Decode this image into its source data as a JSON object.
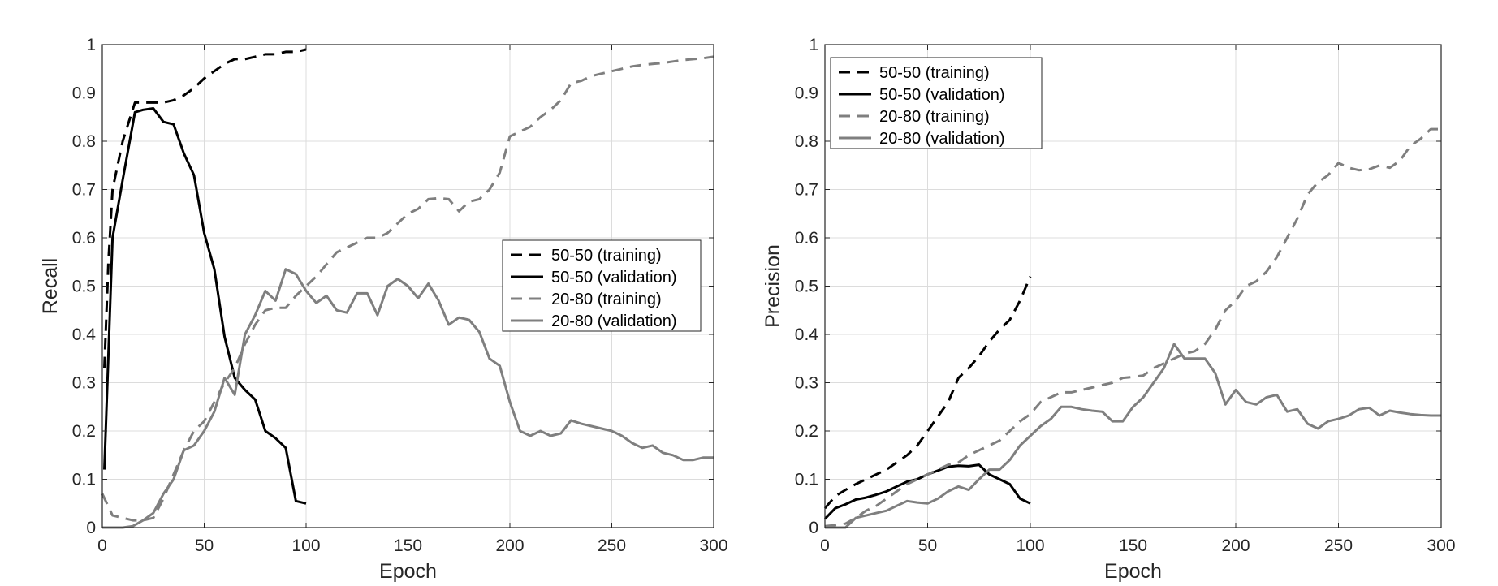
{
  "chart_data": [
    {
      "type": "line",
      "xlabel": "Epoch",
      "ylabel": "Recall",
      "xlim": [
        0,
        300
      ],
      "ylim": [
        0,
        1
      ],
      "xticks": [
        0,
        50,
        100,
        150,
        200,
        250,
        300
      ],
      "yticks": [
        0,
        0.1,
        0.2,
        0.3,
        0.4,
        0.5,
        0.6,
        0.7,
        0.8,
        0.9,
        1
      ],
      "grid": true,
      "legend_position": "center-right",
      "series": [
        {
          "name": "50-50 (training)",
          "color": "#000000",
          "dash": true,
          "x": [
            1,
            3,
            5,
            10,
            16,
            20,
            25,
            30,
            35,
            40,
            45,
            50,
            55,
            60,
            65,
            70,
            75,
            80,
            85,
            90,
            95,
            100
          ],
          "y": [
            0.33,
            0.55,
            0.7,
            0.8,
            0.88,
            0.88,
            0.88,
            0.88,
            0.885,
            0.895,
            0.91,
            0.93,
            0.945,
            0.96,
            0.97,
            0.97,
            0.975,
            0.98,
            0.98,
            0.985,
            0.985,
            0.99
          ]
        },
        {
          "name": "50-50 (validation)",
          "color": "#000000",
          "dash": false,
          "x": [
            1,
            5,
            10,
            16,
            20,
            25,
            30,
            35,
            40,
            45,
            50,
            55,
            60,
            65,
            70,
            75,
            80,
            85,
            90,
            95,
            100
          ],
          "y": [
            0.12,
            0.6,
            0.72,
            0.86,
            0.865,
            0.868,
            0.84,
            0.835,
            0.775,
            0.73,
            0.61,
            0.535,
            0.395,
            0.31,
            0.285,
            0.265,
            0.2,
            0.185,
            0.165,
            0.055,
            0.05
          ]
        },
        {
          "name": "20-80 (training)",
          "color": "#7f7f7f",
          "dash": true,
          "x": [
            0,
            5,
            10,
            15,
            20,
            25,
            30,
            35,
            40,
            45,
            50,
            55,
            60,
            65,
            70,
            75,
            80,
            85,
            90,
            95,
            100,
            105,
            110,
            115,
            120,
            125,
            130,
            135,
            140,
            145,
            150,
            155,
            160,
            165,
            170,
            175,
            180,
            185,
            190,
            195,
            200,
            205,
            210,
            215,
            220,
            225,
            230,
            235,
            240,
            245,
            250,
            255,
            260,
            265,
            270,
            275,
            280,
            285,
            290,
            295,
            300
          ],
          "y": [
            0.07,
            0.025,
            0.02,
            0.015,
            0.015,
            0.02,
            0.06,
            0.11,
            0.16,
            0.2,
            0.22,
            0.26,
            0.3,
            0.33,
            0.38,
            0.42,
            0.45,
            0.455,
            0.455,
            0.48,
            0.5,
            0.52,
            0.545,
            0.57,
            0.58,
            0.59,
            0.6,
            0.6,
            0.61,
            0.63,
            0.65,
            0.66,
            0.68,
            0.682,
            0.68,
            0.655,
            0.675,
            0.68,
            0.7,
            0.735,
            0.81,
            0.82,
            0.83,
            0.85,
            0.865,
            0.885,
            0.92,
            0.925,
            0.935,
            0.94,
            0.945,
            0.95,
            0.955,
            0.958,
            0.96,
            0.962,
            0.965,
            0.968,
            0.97,
            0.972,
            0.975
          ]
        },
        {
          "name": "20-80 (validation)",
          "color": "#7f7f7f",
          "dash": false,
          "x": [
            0,
            5,
            10,
            15,
            20,
            25,
            30,
            35,
            40,
            45,
            50,
            55,
            60,
            65,
            70,
            75,
            80,
            85,
            90,
            95,
            100,
            105,
            110,
            115,
            120,
            125,
            130,
            135,
            140,
            145,
            150,
            155,
            160,
            165,
            170,
            175,
            180,
            185,
            190,
            195,
            200,
            205,
            210,
            215,
            220,
            225,
            230,
            235,
            240,
            245,
            250,
            255,
            260,
            265,
            270,
            275,
            280,
            285,
            290,
            295,
            300
          ],
          "y": [
            0,
            0,
            0,
            0.003,
            0.015,
            0.03,
            0.07,
            0.1,
            0.16,
            0.17,
            0.2,
            0.24,
            0.31,
            0.275,
            0.4,
            0.44,
            0.49,
            0.47,
            0.535,
            0.525,
            0.49,
            0.465,
            0.48,
            0.45,
            0.445,
            0.485,
            0.485,
            0.44,
            0.5,
            0.515,
            0.5,
            0.475,
            0.505,
            0.47,
            0.42,
            0.435,
            0.43,
            0.405,
            0.35,
            0.335,
            0.26,
            0.2,
            0.19,
            0.2,
            0.19,
            0.195,
            0.222,
            0.215,
            0.21,
            0.205,
            0.2,
            0.19,
            0.175,
            0.165,
            0.17,
            0.155,
            0.15,
            0.14,
            0.14,
            0.145,
            0.145
          ]
        }
      ]
    },
    {
      "type": "line",
      "xlabel": "Epoch",
      "ylabel": "Precision",
      "xlim": [
        0,
        300
      ],
      "ylim": [
        0,
        1
      ],
      "xticks": [
        0,
        50,
        100,
        150,
        200,
        250,
        300
      ],
      "yticks": [
        0,
        0.1,
        0.2,
        0.3,
        0.4,
        0.5,
        0.6,
        0.7,
        0.8,
        0.9,
        1
      ],
      "grid": true,
      "legend_position": "top-left",
      "series": [
        {
          "name": "50-50 (training)",
          "color": "#000000",
          "dash": true,
          "x": [
            0,
            5,
            10,
            15,
            20,
            25,
            30,
            35,
            40,
            45,
            50,
            55,
            60,
            65,
            70,
            75,
            80,
            85,
            90,
            95,
            100
          ],
          "y": [
            0.04,
            0.065,
            0.078,
            0.09,
            0.1,
            0.11,
            0.12,
            0.135,
            0.15,
            0.17,
            0.2,
            0.23,
            0.26,
            0.31,
            0.33,
            0.355,
            0.385,
            0.41,
            0.43,
            0.47,
            0.52
          ]
        },
        {
          "name": "50-50 (validation)",
          "color": "#000000",
          "dash": false,
          "x": [
            0,
            5,
            10,
            15,
            20,
            25,
            30,
            35,
            40,
            45,
            50,
            55,
            60,
            65,
            70,
            75,
            80,
            85,
            90,
            95,
            100
          ],
          "y": [
            0.018,
            0.04,
            0.048,
            0.058,
            0.062,
            0.068,
            0.075,
            0.085,
            0.095,
            0.1,
            0.11,
            0.118,
            0.126,
            0.128,
            0.127,
            0.13,
            0.11,
            0.1,
            0.09,
            0.06,
            0.05
          ]
        },
        {
          "name": "20-80 (training)",
          "color": "#7f7f7f",
          "dash": true,
          "x": [
            0,
            5,
            10,
            15,
            20,
            25,
            30,
            35,
            40,
            45,
            50,
            55,
            60,
            65,
            70,
            75,
            80,
            85,
            90,
            95,
            100,
            105,
            110,
            115,
            120,
            125,
            130,
            135,
            140,
            145,
            150,
            155,
            160,
            165,
            170,
            175,
            180,
            185,
            190,
            195,
            200,
            205,
            210,
            215,
            220,
            225,
            230,
            235,
            240,
            245,
            250,
            255,
            260,
            265,
            270,
            275,
            280,
            285,
            290,
            295,
            300
          ],
          "y": [
            0.003,
            0.005,
            0.008,
            0.02,
            0.035,
            0.045,
            0.06,
            0.075,
            0.09,
            0.1,
            0.11,
            0.12,
            0.13,
            0.135,
            0.15,
            0.16,
            0.17,
            0.18,
            0.2,
            0.22,
            0.235,
            0.26,
            0.27,
            0.28,
            0.28,
            0.285,
            0.29,
            0.295,
            0.3,
            0.31,
            0.312,
            0.315,
            0.33,
            0.34,
            0.35,
            0.36,
            0.365,
            0.38,
            0.41,
            0.45,
            0.47,
            0.5,
            0.51,
            0.53,
            0.56,
            0.6,
            0.64,
            0.69,
            0.715,
            0.73,
            0.755,
            0.745,
            0.74,
            0.742,
            0.75,
            0.745,
            0.76,
            0.79,
            0.805,
            0.825,
            0.825
          ]
        },
        {
          "name": "20-80 (validation)",
          "color": "#7f7f7f",
          "dash": false,
          "x": [
            0,
            5,
            10,
            15,
            20,
            25,
            30,
            35,
            40,
            45,
            50,
            55,
            60,
            65,
            70,
            75,
            80,
            85,
            90,
            95,
            100,
            105,
            110,
            115,
            120,
            125,
            130,
            135,
            140,
            145,
            150,
            155,
            160,
            165,
            170,
            175,
            180,
            185,
            190,
            195,
            200,
            205,
            210,
            215,
            220,
            225,
            230,
            235,
            240,
            245,
            250,
            255,
            260,
            265,
            270,
            275,
            280,
            285,
            290,
            295,
            300
          ],
          "y": [
            0,
            0,
            0,
            0.02,
            0.025,
            0.03,
            0.035,
            0.045,
            0.055,
            0.052,
            0.05,
            0.06,
            0.075,
            0.085,
            0.078,
            0.1,
            0.12,
            0.12,
            0.14,
            0.17,
            0.19,
            0.21,
            0.225,
            0.25,
            0.25,
            0.245,
            0.242,
            0.24,
            0.22,
            0.22,
            0.25,
            0.27,
            0.3,
            0.33,
            0.38,
            0.35,
            0.35,
            0.35,
            0.32,
            0.255,
            0.285,
            0.26,
            0.255,
            0.27,
            0.275,
            0.24,
            0.245,
            0.215,
            0.205,
            0.22,
            0.225,
            0.232,
            0.245,
            0.248,
            0.232,
            0.242,
            0.238,
            0.235,
            0.233,
            0.232,
            0.232
          ]
        }
      ]
    }
  ]
}
